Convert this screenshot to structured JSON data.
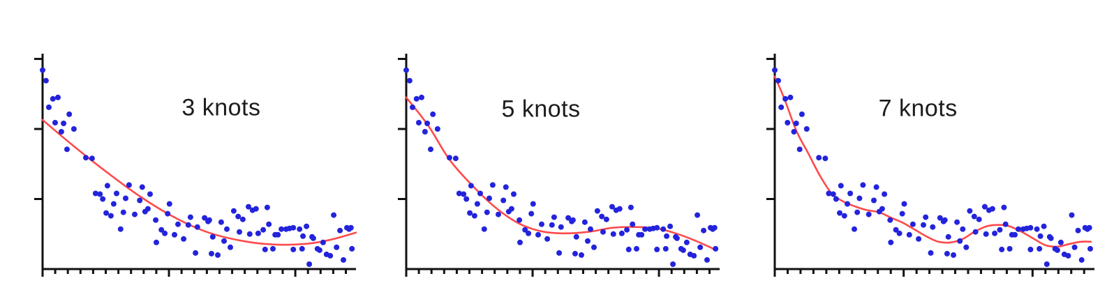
{
  "figure": {
    "background": "#ffffff",
    "point_color": "#2323dc",
    "spline_color": "#ff4a4a",
    "axis_color": "#111111",
    "label_color": "#1c1c1c"
  },
  "chart_data": {
    "type": "scatter",
    "title": "",
    "xlabel": "",
    "ylabel": "",
    "xlim": [
      0,
      1
    ],
    "ylim": [
      0,
      3.075
    ],
    "grid": false,
    "axes": {
      "y_tick_values": [
        1,
        2,
        3
      ],
      "y_tick_labels_visible": false,
      "x_minor_tick_count": 25,
      "x_major_tick_every": 10,
      "x_tick_labels_visible": false
    },
    "points": [
      [
        0.0,
        2.84
      ],
      [
        0.011,
        2.69
      ],
      [
        0.033,
        2.43
      ],
      [
        0.049,
        2.45
      ],
      [
        0.02,
        2.31
      ],
      [
        0.085,
        2.21
      ],
      [
        0.04,
        2.09
      ],
      [
        0.067,
        2.08
      ],
      [
        0.06,
        1.96
      ],
      [
        0.1,
        2.0
      ],
      [
        0.078,
        1.71
      ],
      [
        0.138,
        1.59
      ],
      [
        0.158,
        1.58
      ],
      [
        0.207,
        1.19
      ],
      [
        0.169,
        1.08
      ],
      [
        0.183,
        1.07
      ],
      [
        0.192,
        1.0
      ],
      [
        0.236,
        1.08
      ],
      [
        0.227,
        0.93
      ],
      [
        0.276,
        1.2
      ],
      [
        0.265,
        1.01
      ],
      [
        0.318,
        1.17
      ],
      [
        0.31,
        0.98
      ],
      [
        0.343,
        1.07
      ],
      [
        0.327,
        0.82
      ],
      [
        0.203,
        0.8
      ],
      [
        0.218,
        0.76
      ],
      [
        0.258,
        0.81
      ],
      [
        0.294,
        0.78
      ],
      [
        0.249,
        0.57
      ],
      [
        0.336,
        0.86
      ],
      [
        0.361,
        0.7
      ],
      [
        0.405,
        0.93
      ],
      [
        0.399,
        0.79
      ],
      [
        0.432,
        0.64
      ],
      [
        0.379,
        0.56
      ],
      [
        0.39,
        0.51
      ],
      [
        0.421,
        0.49
      ],
      [
        0.45,
        0.43
      ],
      [
        0.465,
        0.63
      ],
      [
        0.472,
        0.74
      ],
      [
        0.494,
        0.6
      ],
      [
        0.517,
        0.73
      ],
      [
        0.528,
        0.68
      ],
      [
        0.363,
        0.38
      ],
      [
        0.488,
        0.23
      ],
      [
        0.543,
        0.46
      ],
      [
        0.57,
        0.67
      ],
      [
        0.532,
        0.7
      ],
      [
        0.588,
        0.57
      ],
      [
        0.61,
        0.83
      ],
      [
        0.624,
        0.75
      ],
      [
        0.639,
        0.71
      ],
      [
        0.628,
        0.53
      ],
      [
        0.599,
        0.31
      ],
      [
        0.657,
        0.89
      ],
      [
        0.67,
        0.84
      ],
      [
        0.681,
        0.86
      ],
      [
        0.661,
        0.5
      ],
      [
        0.688,
        0.51
      ],
      [
        0.717,
        0.88
      ],
      [
        0.704,
        0.56
      ],
      [
        0.71,
        0.28
      ],
      [
        0.539,
        0.22
      ],
      [
        0.559,
        0.2
      ],
      [
        0.579,
        0.4
      ],
      [
        0.722,
        0.64
      ],
      [
        0.742,
        0.49
      ],
      [
        0.751,
        0.49
      ],
      [
        0.735,
        0.29
      ],
      [
        0.762,
        0.57
      ],
      [
        0.777,
        0.57
      ],
      [
        0.788,
        0.58
      ],
      [
        0.8,
        0.59
      ],
      [
        0.82,
        0.57
      ],
      [
        0.831,
        0.47
      ],
      [
        0.828,
        0.29
      ],
      [
        0.8,
        0.28
      ],
      [
        0.842,
        0.61
      ],
      [
        0.86,
        0.46
      ],
      [
        0.864,
        0.44
      ],
      [
        0.851,
        0.07
      ],
      [
        0.877,
        0.29
      ],
      [
        0.884,
        0.27
      ],
      [
        0.895,
        0.38
      ],
      [
        0.906,
        0.21
      ],
      [
        0.918,
        0.19
      ],
      [
        0.929,
        0.77
      ],
      [
        0.938,
        0.31
      ],
      [
        0.949,
        0.55
      ],
      [
        0.96,
        0.13
      ],
      [
        0.971,
        0.59
      ],
      [
        0.978,
        0.57
      ],
      [
        0.984,
        0.59
      ],
      [
        0.987,
        0.29
      ]
    ],
    "panels": [
      {
        "label": "3 knots",
        "knots": 3,
        "label_center": [
          0.57,
          0.253
        ],
        "spline": [
          [
            0.0,
            2.13
          ],
          [
            0.09,
            1.79
          ],
          [
            0.2,
            1.4
          ],
          [
            0.31,
            1.04
          ],
          [
            0.42,
            0.74
          ],
          [
            0.53,
            0.52
          ],
          [
            0.64,
            0.4
          ],
          [
            0.74,
            0.35
          ],
          [
            0.84,
            0.36
          ],
          [
            0.92,
            0.42
          ],
          [
            1.0,
            0.52
          ]
        ]
      },
      {
        "label": "5 knots",
        "knots": 5,
        "label_center": [
          0.43,
          0.259
        ],
        "spline": [
          [
            0.0,
            2.45
          ],
          [
            0.07,
            2.05
          ],
          [
            0.14,
            1.55
          ],
          [
            0.22,
            1.15
          ],
          [
            0.29,
            0.86
          ],
          [
            0.36,
            0.65
          ],
          [
            0.43,
            0.54
          ],
          [
            0.5,
            0.51
          ],
          [
            0.58,
            0.53
          ],
          [
            0.66,
            0.59
          ],
          [
            0.73,
            0.6
          ],
          [
            0.8,
            0.58
          ],
          [
            0.86,
            0.51
          ],
          [
            0.92,
            0.41
          ],
          [
            0.98,
            0.29
          ]
        ]
      },
      {
        "label": "7 knots",
        "knots": 7,
        "label_center": [
          0.448,
          0.256
        ],
        "spline": [
          [
            0.0,
            2.75
          ],
          [
            0.031,
            2.42
          ],
          [
            0.067,
            1.98
          ],
          [
            0.105,
            1.65
          ],
          [
            0.143,
            1.32
          ],
          [
            0.178,
            1.08
          ],
          [
            0.216,
            0.96
          ],
          [
            0.254,
            0.89
          ],
          [
            0.29,
            0.84
          ],
          [
            0.327,
            0.81
          ],
          [
            0.365,
            0.73
          ],
          [
            0.401,
            0.66
          ],
          [
            0.439,
            0.56
          ],
          [
            0.477,
            0.46
          ],
          [
            0.512,
            0.39
          ],
          [
            0.55,
            0.38
          ],
          [
            0.588,
            0.43
          ],
          [
            0.624,
            0.53
          ],
          [
            0.662,
            0.61
          ],
          [
            0.7,
            0.63
          ],
          [
            0.735,
            0.61
          ],
          [
            0.773,
            0.53
          ],
          [
            0.811,
            0.43
          ],
          [
            0.847,
            0.34
          ],
          [
            0.885,
            0.32
          ],
          [
            0.923,
            0.36
          ],
          [
            0.958,
            0.39
          ],
          [
            0.989,
            0.39
          ]
        ]
      }
    ]
  }
}
